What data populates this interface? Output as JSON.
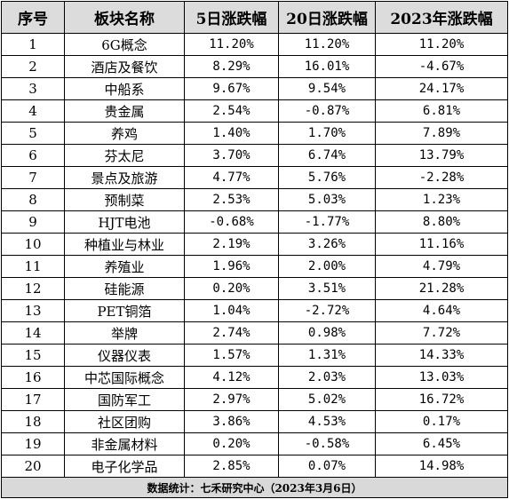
{
  "headers": [
    "序号",
    "板块名称",
    "5日涨跌幅",
    "20日涨跌幅",
    "2023年涨跌幅"
  ],
  "rows": [
    [
      "1",
      "6G概念",
      "11.20%",
      "11.20%",
      "11.20%"
    ],
    [
      "2",
      "酒店及餐饮",
      "8.29%",
      "16.01%",
      "-4.67%"
    ],
    [
      "3",
      "中船系",
      "9.67%",
      "9.54%",
      "24.17%"
    ],
    [
      "4",
      "贵金属",
      "2.54%",
      "-0.87%",
      "6.81%"
    ],
    [
      "5",
      "养鸡",
      "1.40%",
      "1.70%",
      "7.89%"
    ],
    [
      "6",
      "芬太尼",
      "3.70%",
      "6.74%",
      "13.79%"
    ],
    [
      "7",
      "景点及旅游",
      "4.77%",
      "5.76%",
      "-2.28%"
    ],
    [
      "8",
      "预制菜",
      "2.53%",
      "5.03%",
      "1.23%"
    ],
    [
      "9",
      "HJT电池",
      "-0.68%",
      "-1.77%",
      "8.80%"
    ],
    [
      "10",
      "种植业与林业",
      "2.19%",
      "3.26%",
      "11.16%"
    ],
    [
      "11",
      "养殖业",
      "1.96%",
      "2.00%",
      "4.79%"
    ],
    [
      "12",
      "硅能源",
      "0.20%",
      "3.51%",
      "21.28%"
    ],
    [
      "13",
      "PET铜箔",
      "1.04%",
      "-2.72%",
      "4.64%"
    ],
    [
      "14",
      "举牌",
      "2.74%",
      "0.98%",
      "7.72%"
    ],
    [
      "15",
      "仪器仪表",
      "1.57%",
      "1.31%",
      "14.33%"
    ],
    [
      "16",
      "中芯国际概念",
      "4.12%",
      "2.03%",
      "13.03%"
    ],
    [
      "17",
      "国防军工",
      "2.97%",
      "5.02%",
      "16.72%"
    ],
    [
      "18",
      "社区团购",
      "3.86%",
      "4.53%",
      "0.17%"
    ],
    [
      "19",
      "非金属材料",
      "0.20%",
      "-0.58%",
      "6.45%"
    ],
    [
      "20",
      "电子化学品",
      "2.85%",
      "0.07%",
      "14.98%"
    ]
  ],
  "footer": "数据统计：七禾研究中心（2023年3月6日）",
  "colors": {
    "header_bg": "#dcdcdc",
    "footer_bg": "#d9d9d9",
    "border": "#000000"
  }
}
